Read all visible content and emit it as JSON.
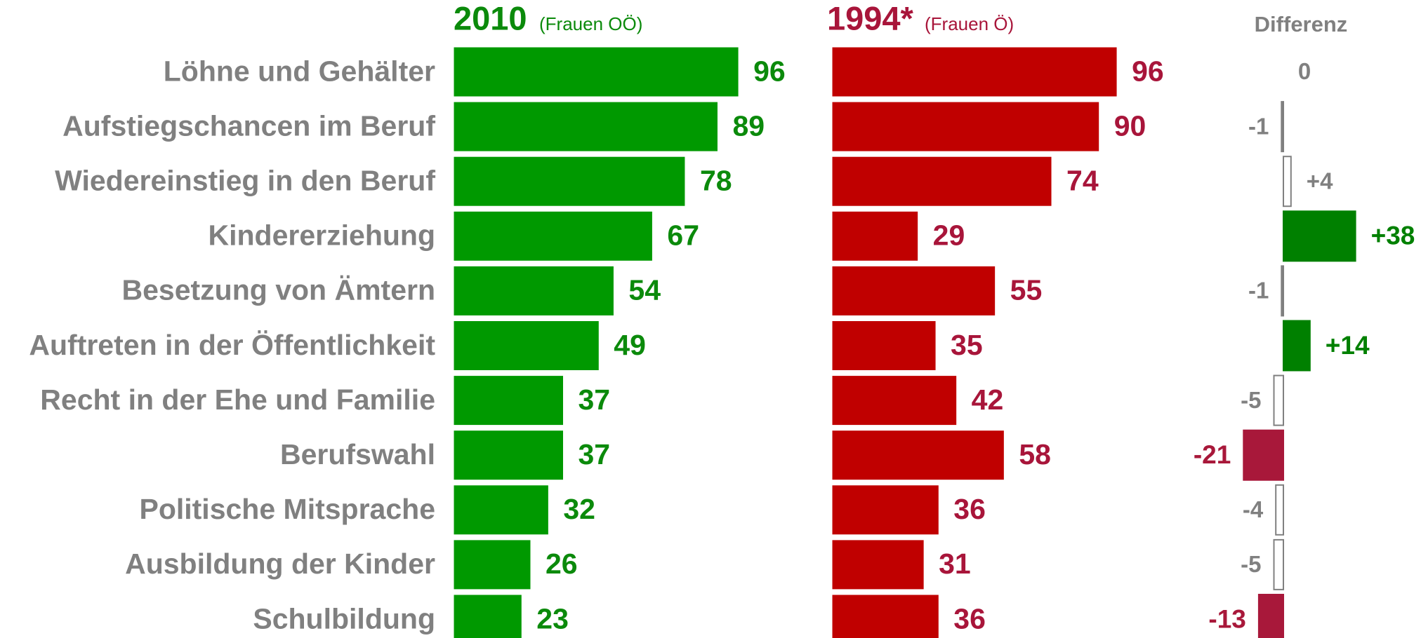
{
  "chart_data": [
    {
      "type": "bar",
      "title": "2010",
      "subtitle": "(Frauen OÖ)",
      "categories": [
        "Löhne und Gehälter",
        "Aufstiegschancen im Beruf",
        "Wiedereinstieg in den Beruf",
        "Kindererziehung",
        "Besetzung von Ämtern",
        "Auftreten in der Öffentlichkeit",
        "Recht in der Ehe und Familie",
        "Berufswahl",
        "Politische Mitsprache",
        "Ausbildung der Kinder",
        "Schulbildung"
      ],
      "values": [
        96,
        89,
        78,
        67,
        54,
        49,
        37,
        37,
        32,
        26,
        23
      ],
      "color": "#009900",
      "label_color": "#0b8a0b"
    },
    {
      "type": "bar",
      "title": "1994*",
      "subtitle": "(Frauen Ö)",
      "values": [
        96,
        90,
        74,
        29,
        55,
        35,
        42,
        58,
        36,
        31,
        36
      ],
      "color": "#c00000",
      "label_color": "#a8153a"
    },
    {
      "type": "diverging",
      "title": "Differenz",
      "values": [
        0,
        -1,
        4,
        38,
        -1,
        14,
        -5,
        -21,
        -4,
        -5,
        -13
      ],
      "value_labels": [
        "0",
        "-1",
        "+4",
        "+38",
        "-1",
        "+14",
        "-5",
        "-21",
        "-4",
        "-5",
        "-13"
      ],
      "colors": [
        "#ffffff",
        "#808080",
        "#ffffff",
        "#008000",
        "#808080",
        "#008000",
        "#ffffff",
        "#a8183a",
        "#ffffff",
        "#ffffff",
        "#a8183a"
      ]
    }
  ]
}
